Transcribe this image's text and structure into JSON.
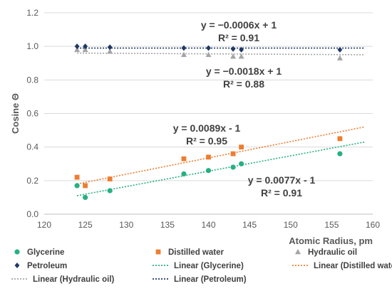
{
  "chart_data": {
    "type": "scatter",
    "xlabel": "Atomic Radius, pm",
    "ylabel": "Cosine Θ",
    "xlim": [
      120,
      160
    ],
    "ylim": [
      0.0,
      1.2
    ],
    "x_ticks": [
      "120",
      "125",
      "130",
      "135",
      "140",
      "145",
      "150",
      "155",
      "160"
    ],
    "y_ticks": [
      "0.0",
      "0.2",
      "0.4",
      "0.6",
      "0.8",
      "1.0",
      "1.2"
    ],
    "grid": "horizontal",
    "legend_position": "bottom",
    "series": [
      {
        "name": "Glycerine",
        "marker": "circle",
        "color": "#27b07f",
        "x": [
          124,
          125,
          128,
          137,
          140,
          143,
          144,
          156
        ],
        "y": [
          0.17,
          0.1,
          0.14,
          0.24,
          0.26,
          0.28,
          0.3,
          0.36
        ]
      },
      {
        "name": "Distilled water",
        "marker": "square",
        "color": "#ed7d31",
        "x": [
          124,
          125,
          128,
          137,
          140,
          143,
          144,
          156
        ],
        "y": [
          0.22,
          0.17,
          0.21,
          0.33,
          0.34,
          0.36,
          0.4,
          0.45
        ]
      },
      {
        "name": "Hydraulic oil",
        "marker": "triangle",
        "color": "#a5a5a5",
        "x": [
          124,
          125,
          128,
          137,
          140,
          143,
          144,
          156
        ],
        "y": [
          0.98,
          0.98,
          0.97,
          0.95,
          0.95,
          0.94,
          0.94,
          0.93
        ]
      },
      {
        "name": "Petroleum",
        "marker": "diamond",
        "color": "#1f3864",
        "x": [
          124,
          125,
          128,
          137,
          140,
          143,
          144,
          156
        ],
        "y": [
          1.0,
          1.0,
          0.995,
          0.99,
          0.99,
          0.985,
          0.98,
          0.98
        ]
      }
    ],
    "trendlines": [
      {
        "name": "Linear (Glycerine)",
        "color": "#27b07f",
        "x": [
          124,
          159
        ],
        "y": [
          0.11,
          0.43
        ]
      },
      {
        "name": "Linear (Distilled water)",
        "color": "#ed7d31",
        "x": [
          124,
          159
        ],
        "y": [
          0.18,
          0.52
        ]
      },
      {
        "name": "Linear (Hydraulic oil)",
        "color": "#a5a5a5",
        "x": [
          124,
          159
        ],
        "y": [
          0.96,
          0.95
        ]
      },
      {
        "name": "Linear (Petroleum)",
        "color": "#1f3864",
        "x": [
          124,
          159
        ],
        "y": [
          0.99,
          0.99
        ]
      }
    ],
    "annotations": [
      {
        "line1": "y = −0.0006x + 1",
        "line2": "R² = 0.91"
      },
      {
        "line1": "y = −0.0018x + 1",
        "line2": "R² = 0.88"
      },
      {
        "line1": "y = 0.0089x - 1",
        "line2": "R² = 0.95"
      },
      {
        "line1": "y = 0.0077x - 1",
        "line2": "R² = 0.91"
      }
    ],
    "legend": [
      {
        "label": "Glycerine",
        "kind": "marker",
        "marker": "circle",
        "color": "#27b07f"
      },
      {
        "label": "Distilled water",
        "kind": "marker",
        "marker": "square",
        "color": "#ed7d31"
      },
      {
        "label": "Hydraulic oil",
        "kind": "marker",
        "marker": "triangle",
        "color": "#a5a5a5"
      },
      {
        "label": "Petroleum",
        "kind": "marker",
        "marker": "diamond",
        "color": "#1f3864"
      },
      {
        "label": "Linear (Glycerine)",
        "kind": "line",
        "color": "#27b07f"
      },
      {
        "label": "Linear (Distilled water)",
        "kind": "line",
        "color": "#ed7d31"
      },
      {
        "label": "Linear (Hydraulic oil)",
        "kind": "line",
        "color": "#a5a5a5"
      },
      {
        "label": "Linear (Petroleum)",
        "kind": "line",
        "color": "#1f3864"
      }
    ]
  }
}
